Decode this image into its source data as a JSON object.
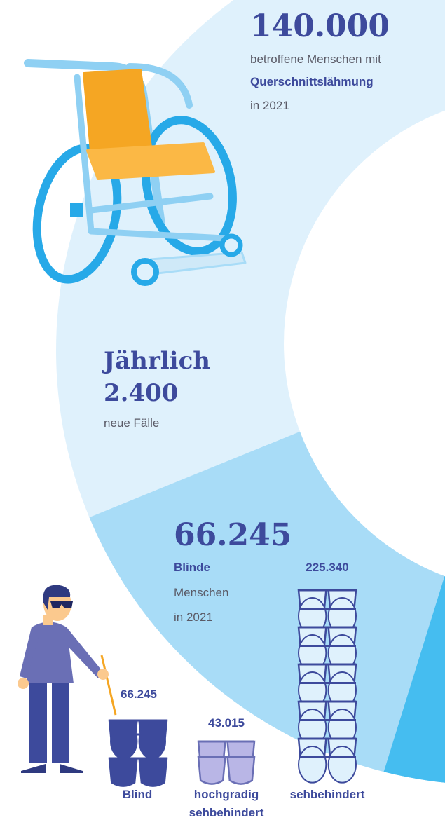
{
  "paraplegia": {
    "number": "140.000",
    "line1": "betroffene Menschen mit",
    "highlight": "Querschnittslähmung",
    "line3": "in 2021"
  },
  "annual": {
    "label": "Jährlich",
    "number": "2.400",
    "caption": "neue Fälle"
  },
  "blind": {
    "number": "66.245",
    "highlight": "Blinde",
    "line2": "Menschen",
    "line3": "in 2021"
  },
  "groups": [
    {
      "count": "66.245",
      "label": [
        "Blind"
      ]
    },
    {
      "count": "43.015",
      "label": [
        "hochgradig",
        "sehbehindert"
      ]
    },
    {
      "count": "225.340",
      "label": [
        "sehbehindert"
      ]
    }
  ]
}
